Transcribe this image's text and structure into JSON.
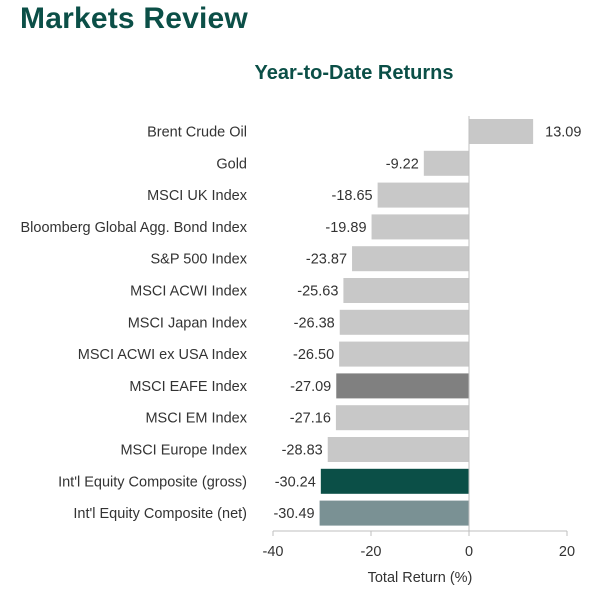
{
  "page": {
    "title": "Markets Review"
  },
  "chart_data": {
    "type": "bar",
    "orientation": "horizontal",
    "title": "Year-to-Date Returns",
    "xlabel": "Total Return (%)",
    "ylabel": "",
    "xlim": [
      -40,
      20
    ],
    "xticks": [
      "-40",
      "-20",
      "0",
      "20"
    ],
    "grid": false,
    "categories": [
      "Brent Crude Oil",
      "Gold",
      "MSCI UK Index",
      "Bloomberg Global Agg. Bond Index",
      "S&P 500 Index",
      "MSCI ACWI Index",
      "MSCI Japan Index",
      "MSCI ACWI ex USA Index",
      "MSCI EAFE Index",
      "MSCI EM Index",
      "MSCI Europe Index",
      "Int'l Equity Composite (gross)",
      "Int'l Equity Composite (net)"
    ],
    "values": [
      13.09,
      -9.22,
      -18.65,
      -19.89,
      -23.87,
      -25.63,
      -26.38,
      -26.5,
      -27.09,
      -27.16,
      -28.83,
      -30.24,
      -30.49
    ],
    "value_labels": [
      "13.09",
      "-9.22",
      "-18.65",
      "-19.89",
      "-23.87",
      "-25.63",
      "-26.38",
      "-26.50",
      "-27.09",
      "-27.16",
      "-28.83",
      "-30.24",
      "-30.49"
    ],
    "bar_colors": [
      "#c8c8c8",
      "#c8c8c8",
      "#c8c8c8",
      "#c8c8c8",
      "#c8c8c8",
      "#c8c8c8",
      "#c8c8c8",
      "#c8c8c8",
      "#808080",
      "#c8c8c8",
      "#c8c8c8",
      "#0b4f47",
      "#7a9194"
    ]
  }
}
